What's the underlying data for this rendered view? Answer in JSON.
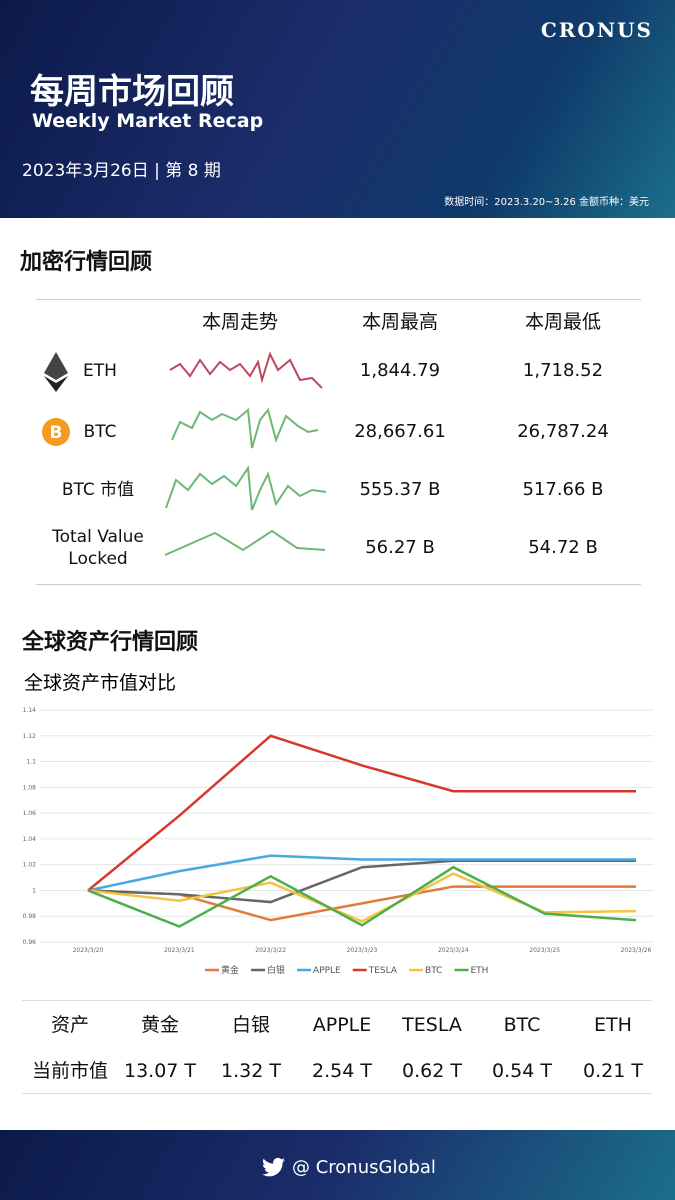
{
  "header": {
    "logo": "CRONUS",
    "title_cn": "每周市场回顾",
    "title_en": "Weekly Market Recap",
    "issue": "2023年3月26日 | 第 8 期",
    "data_note": "数据时间：2023.3.20~3.26 金额币种：美元"
  },
  "crypto": {
    "title": "加密行情回顾",
    "columns": [
      "本周走势",
      "本周最高",
      "本周最低"
    ],
    "rows": [
      [
        "ETH",
        "1,844.79",
        "1,718.52"
      ],
      [
        "BTC",
        "28,667.61",
        "26,787.24"
      ],
      [
        "BTC 市值",
        "555.37 B",
        "517.66 B"
      ],
      [
        "Total Value\nLocked",
        "56.27 B",
        "54.72 B"
      ]
    ]
  },
  "global": {
    "title": "全球资产行情回顾"
  },
  "chart_data": {
    "type": "line",
    "title": "全球资产市值对比",
    "categories": [
      "2023/3/20",
      "2023/3/21",
      "2023/3/22",
      "2023/3/23",
      "2023/3/24",
      "2023/3/25",
      "2023/3/26"
    ],
    "ylim": [
      0.96,
      1.14
    ],
    "yticks": [
      0.96,
      0.98,
      1,
      1.02,
      1.04,
      1.06,
      1.08,
      1.1,
      1.12,
      1.14
    ],
    "grid": true,
    "legend": "bottom",
    "series": [
      {
        "name": "黄金",
        "color": "#e07b39",
        "values": [
          1,
          0.997,
          0.977,
          0.99,
          1.003,
          1.003,
          1.003
        ]
      },
      {
        "name": "白银",
        "color": "#666666",
        "values": [
          1,
          0.997,
          0.991,
          1.018,
          1.023,
          1.023,
          1.023
        ]
      },
      {
        "name": "APPLE",
        "color": "#4aa8e0",
        "values": [
          1,
          1.015,
          1.027,
          1.024,
          1.024,
          1.024,
          1.024
        ]
      },
      {
        "name": "TESLA",
        "color": "#d9372b",
        "values": [
          1,
          1.058,
          1.12,
          1.097,
          1.077,
          1.077,
          1.077
        ]
      },
      {
        "name": "BTC",
        "color": "#f5c242",
        "values": [
          1,
          0.992,
          1.006,
          0.976,
          1.013,
          0.983,
          0.984
        ]
      },
      {
        "name": "ETH",
        "color": "#4cae4c",
        "values": [
          1,
          0.972,
          1.011,
          0.973,
          1.018,
          0.982,
          0.977
        ]
      }
    ]
  },
  "market_cap": {
    "header": [
      "资产",
      "黄金",
      "白银",
      "APPLE",
      "TESLA",
      "BTC",
      "ETH"
    ],
    "row": [
      "当前市值",
      "13.07 T",
      "1.32 T",
      "2.54 T",
      "0.62 T",
      "0.54 T",
      "0.21 T"
    ]
  },
  "footer": {
    "handle": "@ CronusGlobal"
  }
}
